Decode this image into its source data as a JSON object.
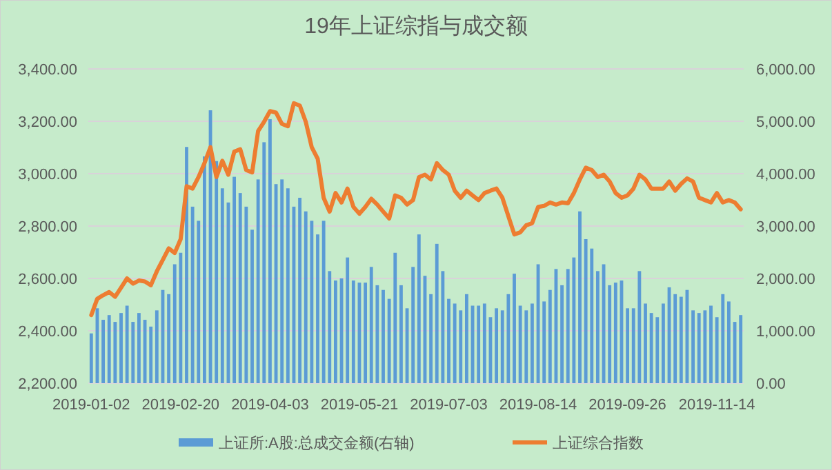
{
  "chart_data": {
    "type": "bar",
    "title": "19年上证综指与成交额",
    "categories": [
      "2019-01-02",
      null,
      null,
      null,
      null,
      null,
      null,
      null,
      null,
      null,
      null,
      null,
      null,
      null,
      null,
      "2019-02-20",
      null,
      null,
      null,
      null,
      null,
      null,
      null,
      null,
      null,
      null,
      null,
      null,
      null,
      null,
      "2019-04-03",
      null,
      null,
      null,
      null,
      null,
      null,
      null,
      null,
      null,
      null,
      null,
      null,
      null,
      null,
      "2019-05-21",
      null,
      null,
      null,
      null,
      null,
      null,
      null,
      null,
      null,
      null,
      null,
      null,
      null,
      null,
      "2019-07-03",
      null,
      null,
      null,
      null,
      null,
      null,
      null,
      null,
      null,
      null,
      null,
      null,
      null,
      null,
      "2019-08-14",
      null,
      null,
      null,
      null,
      null,
      null,
      null,
      null,
      null,
      null,
      null,
      null,
      null,
      null,
      "2019-09-26",
      null,
      null,
      null,
      null,
      null,
      null,
      null,
      null,
      null,
      null,
      null,
      null,
      null,
      null,
      "2019-11-14",
      null,
      null,
      null,
      null
    ],
    "series": [
      {
        "name": "上证所:A股:总成交金额(右轴)",
        "axis": "y2",
        "color": "#5b9bd5",
        "values": [
          950,
          1430,
          1210,
          1300,
          1170,
          1340,
          1480,
          1170,
          1340,
          1210,
          1080,
          1390,
          1780,
          1700,
          2270,
          2490,
          4510,
          3370,
          3100,
          4330,
          5210,
          4240,
          3720,
          3450,
          3940,
          3630,
          3370,
          2930,
          3890,
          4600,
          5040,
          3800,
          3890,
          3720,
          3370,
          3540,
          3280,
          3100,
          2840,
          3100,
          2140,
          1960,
          2000,
          2400,
          1960,
          1920,
          1920,
          2220,
          1870,
          1780,
          1610,
          2490,
          1870,
          1430,
          2220,
          2840,
          2050,
          1700,
          2660,
          2140,
          1610,
          1520,
          1390,
          1700,
          1480,
          1480,
          1520,
          1260,
          1430,
          1390,
          1700,
          2090,
          1480,
          1390,
          1520,
          2270,
          1560,
          1780,
          2180,
          1870,
          2180,
          2400,
          3280,
          2750,
          2570,
          2140,
          2270,
          1870,
          1920,
          1960,
          1430,
          1430,
          2140,
          1520,
          1340,
          1260,
          1520,
          1830,
          1700,
          1650,
          1780,
          1390,
          1340,
          1390,
          1480,
          1260,
          1700,
          1560,
          1170,
          1300
        ]
      },
      {
        "name": "上证综合指数",
        "type": "line",
        "color": "#ed7d31",
        "values": [
          2460,
          2522,
          2536,
          2548,
          2530,
          2565,
          2600,
          2580,
          2592,
          2588,
          2574,
          2627,
          2671,
          2715,
          2697,
          2750,
          2952,
          2943,
          2987,
          3040,
          3101,
          2987,
          3049,
          2996,
          3084,
          3093,
          3014,
          3005,
          3163,
          3198,
          3239,
          3233,
          3190,
          3181,
          3269,
          3260,
          3198,
          3101,
          3057,
          2908,
          2855,
          2926,
          2890,
          2943,
          2873,
          2847,
          2873,
          2904,
          2882,
          2855,
          2829,
          2917,
          2908,
          2882,
          2899,
          2987,
          2996,
          2978,
          3040,
          3014,
          2996,
          2935,
          2908,
          2935,
          2917,
          2899,
          2926,
          2935,
          2943,
          2908,
          2838,
          2768,
          2776,
          2803,
          2811,
          2873,
          2877,
          2890,
          2882,
          2890,
          2887,
          2926,
          2978,
          3023,
          3014,
          2987,
          2996,
          2970,
          2926,
          2908,
          2917,
          2943,
          2996,
          2978,
          2943,
          2943,
          2943,
          2970,
          2935,
          2961,
          2982,
          2970,
          2908,
          2899,
          2890,
          2926,
          2890,
          2899,
          2890,
          2864
        ]
      }
    ],
    "ylim": [
      2200,
      3400
    ],
    "yticks": [
      {
        "value": 2200,
        "label": "2,200.00"
      },
      {
        "value": 2400,
        "label": "2,400.00"
      },
      {
        "value": 2600,
        "label": "2,600.00"
      },
      {
        "value": 2800,
        "label": "2,800.00"
      },
      {
        "value": 3000,
        "label": "3,000.00"
      },
      {
        "value": 3200,
        "label": "3,200.00"
      },
      {
        "value": 3400,
        "label": "3,400.00"
      }
    ],
    "y2lim": [
      0,
      6000
    ],
    "y2ticks": [
      {
        "value": 0,
        "label": "0.00"
      },
      {
        "value": 1000,
        "label": "1,000.00"
      },
      {
        "value": 2000,
        "label": "2,000.00"
      },
      {
        "value": 3000,
        "label": "3,000.00"
      },
      {
        "value": 4000,
        "label": "4,000.00"
      },
      {
        "value": 5000,
        "label": "5,000.00"
      },
      {
        "value": 6000,
        "label": "6,000.00"
      }
    ],
    "grid": "y",
    "legend": "bottom"
  }
}
